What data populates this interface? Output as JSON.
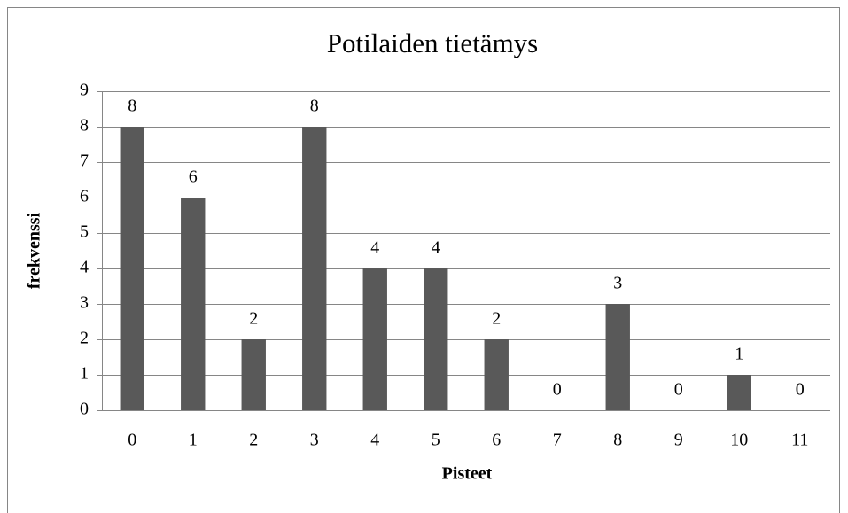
{
  "chart_data": {
    "type": "bar",
    "title": "Potilaiden tietämys",
    "x_label": "Pisteet",
    "y_label": "frekvenssi",
    "categories": [
      "0",
      "1",
      "2",
      "3",
      "4",
      "5",
      "6",
      "7",
      "8",
      "9",
      "10",
      "11"
    ],
    "values": [
      8,
      6,
      2,
      8,
      4,
      4,
      2,
      0,
      3,
      0,
      1,
      0
    ],
    "color": "#595959",
    "ylim": [
      0,
      9
    ],
    "yticks": [
      0,
      1,
      2,
      3,
      4,
      5,
      6,
      7,
      8,
      9
    ],
    "grid": true
  }
}
